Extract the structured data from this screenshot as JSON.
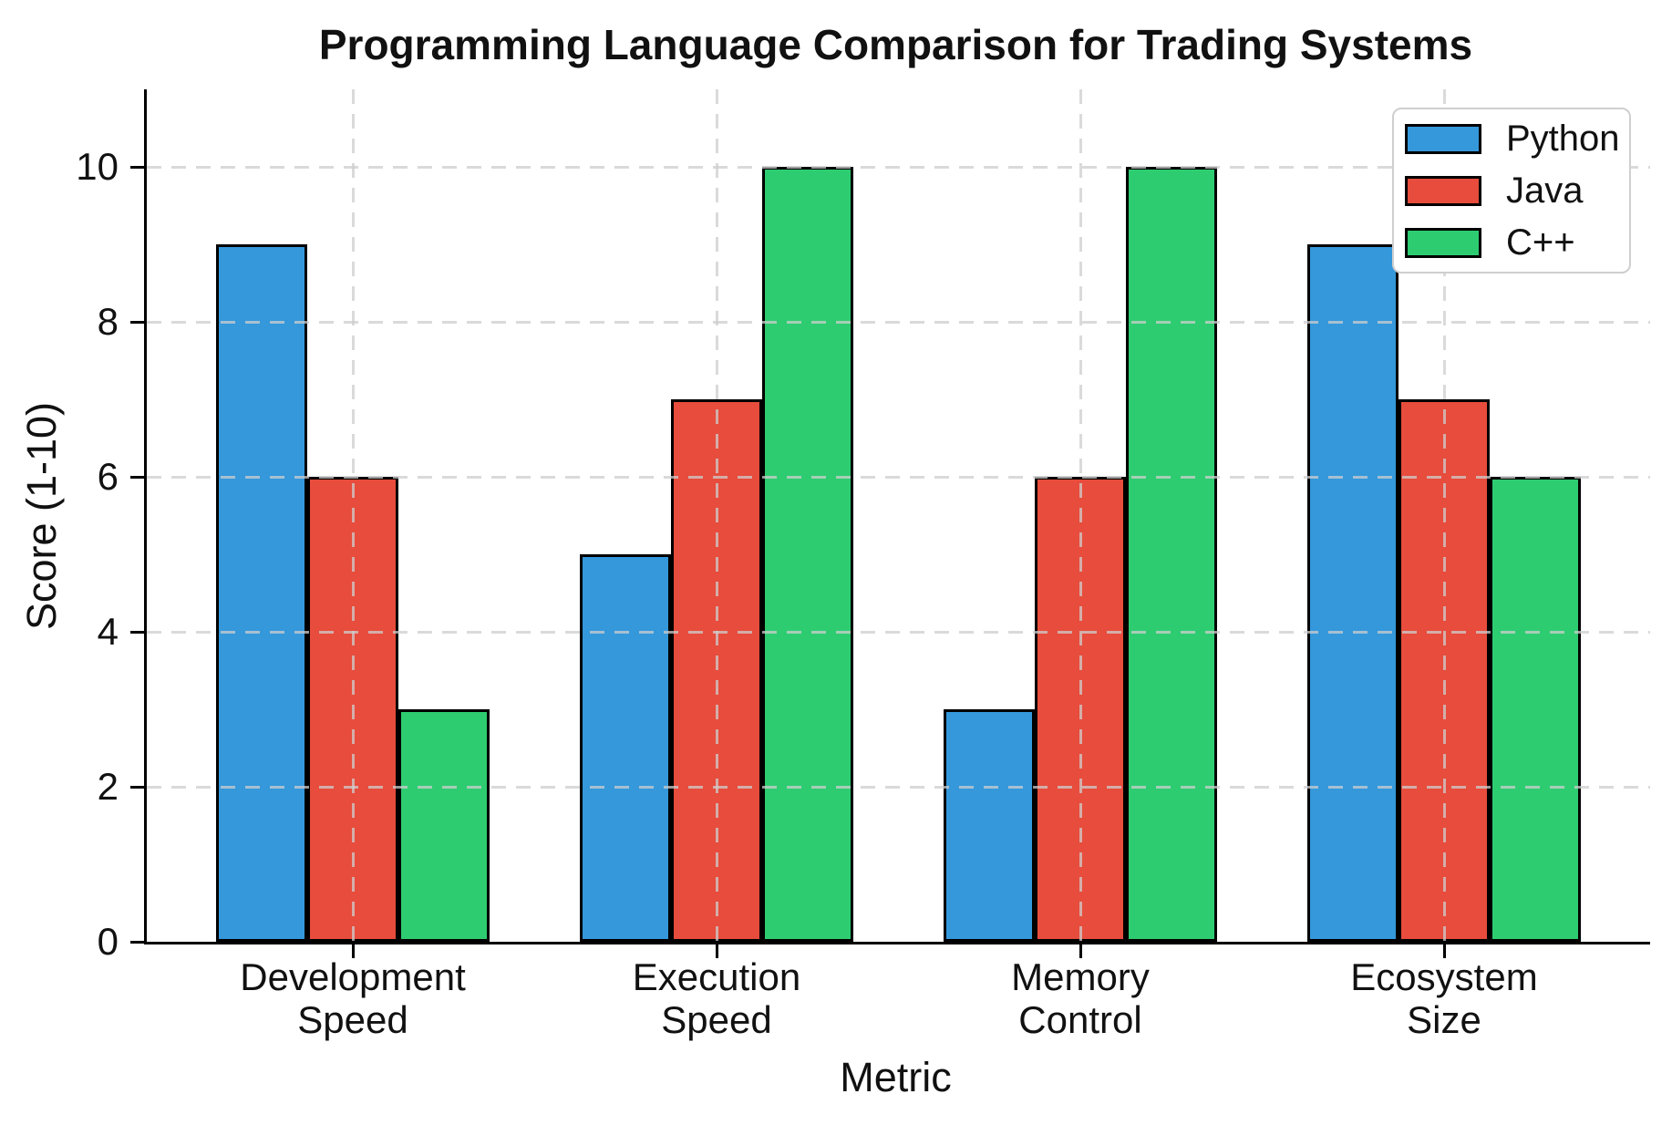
{
  "chart_data": {
    "type": "bar",
    "title": "Programming Language Comparison for Trading Systems",
    "xlabel": "Metric",
    "ylabel": "Score (1-10)",
    "categories": [
      "Development Speed",
      "Execution Speed",
      "Memory Control",
      "Ecosystem Size"
    ],
    "category_label_lines": [
      [
        "Development",
        "Speed"
      ],
      [
        "Execution",
        "Speed"
      ],
      [
        "Memory",
        "Control"
      ],
      [
        "Ecosystem",
        "Size"
      ]
    ],
    "series": [
      {
        "name": "Python",
        "color": "#3498db",
        "values": [
          9,
          5,
          3,
          9
        ]
      },
      {
        "name": "Java",
        "color": "#e74c3c",
        "values": [
          6,
          7,
          6,
          7
        ]
      },
      {
        "name": "C++",
        "color": "#2ecc71",
        "values": [
          3,
          10,
          10,
          6
        ]
      }
    ],
    "ylim": [
      0,
      11
    ],
    "yticks": [
      0,
      2,
      4,
      6,
      8,
      10
    ],
    "grid": "dashed-both-axes",
    "legend_position": "upper right",
    "bar_edge_color": "#000000",
    "background_color": "#ffffff"
  }
}
